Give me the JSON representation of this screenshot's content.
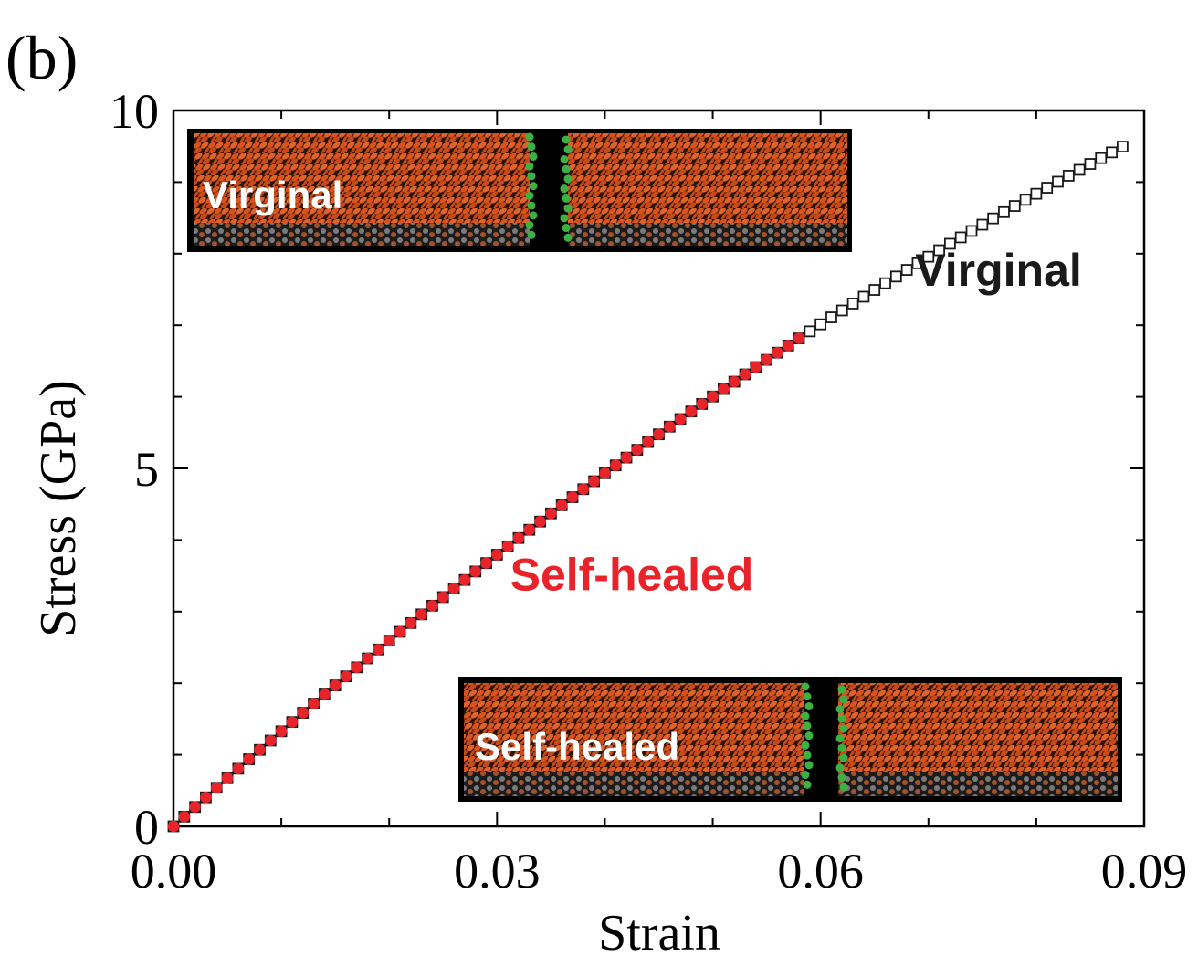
{
  "panel_label": "(b)",
  "colors": {
    "virginal": "#1a1a1a",
    "self_healed": "#e8232a",
    "inset_bg": "#000000",
    "atom_orange": "#d9531e",
    "atom_grey": "#6e6e6e",
    "atom_green": "#3cb043"
  },
  "insets": {
    "top_label": "Virginal",
    "bottom_label": "Self-healed"
  },
  "chart_data": {
    "type": "scatter",
    "title": "",
    "xlabel": "Strain",
    "ylabel": "Stress (GPa)",
    "xlim": [
      0.0,
      0.09
    ],
    "ylim": [
      0,
      10
    ],
    "xticks": [
      "0.00",
      "0.03",
      "0.06",
      "0.09"
    ],
    "yticks": [
      "0",
      "5",
      "10"
    ],
    "x_minor_step": 0.01,
    "y_minor_step": 1,
    "grid": false,
    "series": [
      {
        "name": "Virginal",
        "marker": "open-square",
        "color": "#1a1a1a",
        "x_start": 0.0,
        "x_end": 0.0877,
        "x_step": 0.001,
        "curve": "y = 136.13*x - 320.8*x^2",
        "y_at_x_end": 9.47
      },
      {
        "name": "Self-healed",
        "marker": "filled-circle",
        "color": "#e8232a",
        "x_start": 0.0,
        "x_end": 0.058,
        "x_step": 0.001,
        "curve": "y = 136.13*x - 320.8*x^2",
        "y_at_x_end": 6.82
      }
    ],
    "annotations": [
      {
        "text": "Virginal",
        "color": "#1a1a1a",
        "x": 0.0765,
        "y": 7.55
      },
      {
        "text": "Self-healed",
        "color": "#e8232a",
        "x": 0.0425,
        "y": 3.3
      }
    ]
  }
}
